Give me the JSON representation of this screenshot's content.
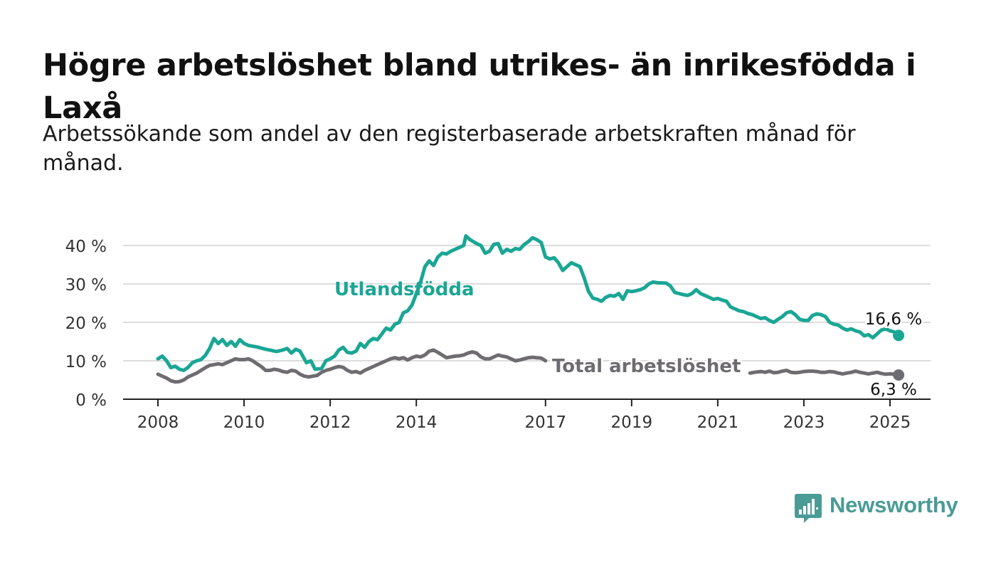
{
  "title": "Högre arbetslöshet bland utrikes- än inrikesfödda i Laxå",
  "subtitle": "Arbetssökande som andel av den registerbaserade arbetskraften månad för månad.",
  "brand": {
    "name": "Newsworthy",
    "color": "#4a9b96"
  },
  "chart_data": {
    "type": "line",
    "title": "Högre arbetslöshet bland utrikes- än inrikesfödda i Laxå",
    "subtitle": "Arbetssökande som andel av den registerbaserade arbetskraften månad för månad.",
    "ylim": [
      0,
      45
    ],
    "xlim": [
      2007.2,
      2025.9
    ],
    "yticks": [
      0,
      10,
      20,
      30,
      40
    ],
    "ytick_labels": [
      "0 %",
      "10 %",
      "20 %",
      "30 %",
      "40 %"
    ],
    "xticks": [
      2008,
      2010,
      2012,
      2014,
      2017,
      2019,
      2021,
      2023,
      2025
    ],
    "xtick_labels": [
      "2008",
      "2010",
      "2012",
      "2014",
      "2017",
      "2019",
      "2021",
      "2023",
      "2025"
    ],
    "grid": true,
    "series": [
      {
        "name": "Utlandsfödda",
        "color": "#1aa695",
        "end_label": "16,6 %",
        "points": [
          [
            2008.0,
            10.5
          ],
          [
            2008.1,
            11.2
          ],
          [
            2008.2,
            10.0
          ],
          [
            2008.3,
            8.2
          ],
          [
            2008.4,
            8.6
          ],
          [
            2008.5,
            7.8
          ],
          [
            2008.6,
            7.5
          ],
          [
            2008.7,
            8.3
          ],
          [
            2008.8,
            9.5
          ],
          [
            2008.9,
            10.0
          ],
          [
            2009.0,
            10.3
          ],
          [
            2009.1,
            11.4
          ],
          [
            2009.2,
            13.2
          ],
          [
            2009.3,
            15.8
          ],
          [
            2009.4,
            14.5
          ],
          [
            2009.5,
            15.5
          ],
          [
            2009.6,
            14.0
          ],
          [
            2009.7,
            15.0
          ],
          [
            2009.8,
            13.8
          ],
          [
            2009.9,
            15.5
          ],
          [
            2010.0,
            14.5
          ],
          [
            2010.1,
            14.0
          ],
          [
            2010.3,
            13.6
          ],
          [
            2010.5,
            13.0
          ],
          [
            2010.6,
            12.8
          ],
          [
            2010.75,
            12.4
          ],
          [
            2010.9,
            12.8
          ],
          [
            2011.0,
            13.2
          ],
          [
            2011.1,
            12.0
          ],
          [
            2011.2,
            13.0
          ],
          [
            2011.3,
            12.5
          ],
          [
            2011.45,
            9.5
          ],
          [
            2011.55,
            10.0
          ],
          [
            2011.65,
            7.8
          ],
          [
            2011.8,
            8.0
          ],
          [
            2011.9,
            10.0
          ],
          [
            2012.0,
            10.5
          ],
          [
            2012.1,
            11.2
          ],
          [
            2012.2,
            12.8
          ],
          [
            2012.3,
            13.5
          ],
          [
            2012.4,
            12.2
          ],
          [
            2012.5,
            12.0
          ],
          [
            2012.6,
            12.5
          ],
          [
            2012.7,
            14.5
          ],
          [
            2012.8,
            13.5
          ],
          [
            2012.9,
            15.0
          ],
          [
            2013.0,
            15.8
          ],
          [
            2013.1,
            15.5
          ],
          [
            2013.2,
            17.0
          ],
          [
            2013.3,
            18.5
          ],
          [
            2013.4,
            18.0
          ],
          [
            2013.5,
            19.5
          ],
          [
            2013.6,
            20.0
          ],
          [
            2013.7,
            22.5
          ],
          [
            2013.8,
            23.0
          ],
          [
            2013.9,
            24.5
          ],
          [
            2014.0,
            27.5
          ],
          [
            2014.1,
            30.5
          ],
          [
            2014.2,
            34.5
          ],
          [
            2014.3,
            36.0
          ],
          [
            2014.4,
            34.8
          ],
          [
            2014.5,
            37.0
          ],
          [
            2014.6,
            38.0
          ],
          [
            2014.7,
            37.8
          ],
          [
            2014.8,
            38.5
          ],
          [
            2014.9,
            39.0
          ],
          [
            2015.0,
            39.5
          ],
          [
            2015.1,
            40.0
          ],
          [
            2015.15,
            42.5
          ],
          [
            2015.25,
            41.5
          ],
          [
            2015.4,
            40.5
          ],
          [
            2015.5,
            40.0
          ],
          [
            2015.6,
            38.0
          ],
          [
            2015.7,
            38.5
          ],
          [
            2015.8,
            40.3
          ],
          [
            2015.9,
            40.5
          ],
          [
            2016.0,
            38.0
          ],
          [
            2016.1,
            39.0
          ],
          [
            2016.2,
            38.5
          ],
          [
            2016.3,
            39.2
          ],
          [
            2016.4,
            39.0
          ],
          [
            2016.5,
            40.2
          ],
          [
            2016.6,
            41.0
          ],
          [
            2016.7,
            42.0
          ],
          [
            2016.8,
            41.5
          ],
          [
            2016.9,
            40.8
          ],
          [
            2017.0,
            37.0
          ],
          [
            2017.1,
            36.5
          ],
          [
            2017.2,
            36.8
          ],
          [
            2017.3,
            35.5
          ],
          [
            2017.4,
            33.5
          ],
          [
            2017.5,
            34.5
          ],
          [
            2017.6,
            35.5
          ],
          [
            2017.7,
            35.0
          ],
          [
            2017.8,
            34.5
          ],
          [
            2017.9,
            31.5
          ],
          [
            2018.0,
            28.0
          ],
          [
            2018.1,
            26.3
          ],
          [
            2018.2,
            26.0
          ],
          [
            2018.3,
            25.5
          ],
          [
            2018.4,
            26.5
          ],
          [
            2018.5,
            27.0
          ],
          [
            2018.6,
            26.8
          ],
          [
            2018.7,
            27.5
          ],
          [
            2018.8,
            26.0
          ],
          [
            2018.9,
            28.2
          ],
          [
            2019.0,
            28.0
          ],
          [
            2019.1,
            28.2
          ],
          [
            2019.2,
            28.5
          ],
          [
            2019.3,
            29.0
          ],
          [
            2019.4,
            30.0
          ],
          [
            2019.5,
            30.5
          ],
          [
            2019.6,
            30.3
          ],
          [
            2019.8,
            30.2
          ],
          [
            2019.9,
            29.5
          ],
          [
            2020.0,
            27.8
          ],
          [
            2020.1,
            27.5
          ],
          [
            2020.2,
            27.2
          ],
          [
            2020.3,
            27.0
          ],
          [
            2020.4,
            27.5
          ],
          [
            2020.5,
            28.5
          ],
          [
            2020.6,
            27.5
          ],
          [
            2020.7,
            27.0
          ],
          [
            2020.8,
            26.5
          ],
          [
            2020.9,
            26.0
          ],
          [
            2021.0,
            26.2
          ],
          [
            2021.1,
            25.8
          ],
          [
            2021.2,
            25.5
          ],
          [
            2021.3,
            24.0
          ],
          [
            2021.4,
            23.5
          ],
          [
            2021.5,
            23.0
          ],
          [
            2021.6,
            22.8
          ],
          [
            2021.7,
            22.3
          ],
          [
            2021.8,
            22.0
          ],
          [
            2021.9,
            21.5
          ],
          [
            2022.0,
            21.0
          ],
          [
            2022.1,
            21.2
          ],
          [
            2022.2,
            20.5
          ],
          [
            2022.3,
            20.0
          ],
          [
            2022.4,
            20.8
          ],
          [
            2022.5,
            21.5
          ],
          [
            2022.6,
            22.5
          ],
          [
            2022.7,
            22.8
          ],
          [
            2022.8,
            22.0
          ],
          [
            2022.9,
            20.8
          ],
          [
            2023.0,
            20.5
          ],
          [
            2023.1,
            20.5
          ],
          [
            2023.2,
            21.8
          ],
          [
            2023.3,
            22.2
          ],
          [
            2023.4,
            22.0
          ],
          [
            2023.5,
            21.5
          ],
          [
            2023.6,
            20.0
          ],
          [
            2023.7,
            19.5
          ],
          [
            2023.8,
            19.3
          ],
          [
            2023.9,
            18.5
          ],
          [
            2024.0,
            18.0
          ],
          [
            2024.1,
            18.3
          ],
          [
            2024.2,
            17.8
          ],
          [
            2024.3,
            17.5
          ],
          [
            2024.4,
            16.5
          ],
          [
            2024.5,
            16.8
          ],
          [
            2024.6,
            16.0
          ],
          [
            2024.7,
            17.0
          ],
          [
            2024.8,
            18.0
          ],
          [
            2024.9,
            18.3
          ],
          [
            2025.0,
            17.8
          ],
          [
            2025.1,
            17.5
          ],
          [
            2025.2,
            16.6
          ]
        ]
      },
      {
        "name": "Total arbetslöshet",
        "color": "#6e6c70",
        "end_label": "6,3 %",
        "points": [
          [
            2008.0,
            6.5
          ],
          [
            2008.1,
            6.0
          ],
          [
            2008.2,
            5.5
          ],
          [
            2008.3,
            4.8
          ],
          [
            2008.4,
            4.5
          ],
          [
            2008.5,
            4.6
          ],
          [
            2008.6,
            5.0
          ],
          [
            2008.7,
            5.8
          ],
          [
            2008.8,
            6.3
          ],
          [
            2008.9,
            6.8
          ],
          [
            2009.0,
            7.5
          ],
          [
            2009.1,
            8.2
          ],
          [
            2009.2,
            8.8
          ],
          [
            2009.3,
            9.0
          ],
          [
            2009.4,
            9.2
          ],
          [
            2009.5,
            9.0
          ],
          [
            2009.6,
            9.5
          ],
          [
            2009.7,
            10.0
          ],
          [
            2009.8,
            10.5
          ],
          [
            2009.9,
            10.3
          ],
          [
            2010.0,
            10.3
          ],
          [
            2010.1,
            10.5
          ],
          [
            2010.2,
            10.0
          ],
          [
            2010.3,
            9.2
          ],
          [
            2010.4,
            8.5
          ],
          [
            2010.5,
            7.5
          ],
          [
            2010.6,
            7.5
          ],
          [
            2010.7,
            7.8
          ],
          [
            2010.8,
            7.6
          ],
          [
            2010.9,
            7.2
          ],
          [
            2011.0,
            7.0
          ],
          [
            2011.1,
            7.5
          ],
          [
            2011.2,
            7.3
          ],
          [
            2011.3,
            6.5
          ],
          [
            2011.4,
            6.0
          ],
          [
            2011.5,
            5.8
          ],
          [
            2011.6,
            6.0
          ],
          [
            2011.7,
            6.2
          ],
          [
            2011.8,
            7.0
          ],
          [
            2011.9,
            7.5
          ],
          [
            2012.0,
            7.8
          ],
          [
            2012.1,
            8.2
          ],
          [
            2012.2,
            8.5
          ],
          [
            2012.3,
            8.3
          ],
          [
            2012.4,
            7.5
          ],
          [
            2012.5,
            7.0
          ],
          [
            2012.6,
            7.2
          ],
          [
            2012.7,
            6.8
          ],
          [
            2012.8,
            7.5
          ],
          [
            2012.9,
            8.0
          ],
          [
            2013.0,
            8.5
          ],
          [
            2013.1,
            9.0
          ],
          [
            2013.2,
            9.5
          ],
          [
            2013.3,
            10.0
          ],
          [
            2013.4,
            10.5
          ],
          [
            2013.5,
            10.8
          ],
          [
            2013.6,
            10.5
          ],
          [
            2013.7,
            10.8
          ],
          [
            2013.8,
            10.2
          ],
          [
            2013.9,
            10.8
          ],
          [
            2014.0,
            11.2
          ],
          [
            2014.1,
            11.0
          ],
          [
            2014.2,
            11.5
          ],
          [
            2014.3,
            12.5
          ],
          [
            2014.4,
            12.8
          ],
          [
            2014.5,
            12.2
          ],
          [
            2014.6,
            11.5
          ],
          [
            2014.7,
            10.8
          ],
          [
            2014.8,
            11.0
          ],
          [
            2014.9,
            11.2
          ],
          [
            2015.0,
            11.3
          ],
          [
            2015.1,
            11.5
          ],
          [
            2015.2,
            12.0
          ],
          [
            2015.3,
            12.3
          ],
          [
            2015.4,
            12.0
          ],
          [
            2015.5,
            11.0
          ],
          [
            2015.6,
            10.5
          ],
          [
            2015.7,
            10.5
          ],
          [
            2015.8,
            11.0
          ],
          [
            2015.9,
            11.5
          ],
          [
            2016.0,
            11.2
          ],
          [
            2016.1,
            11.0
          ],
          [
            2016.2,
            10.5
          ],
          [
            2016.3,
            10.0
          ],
          [
            2016.4,
            10.2
          ],
          [
            2016.5,
            10.5
          ],
          [
            2016.6,
            10.8
          ],
          [
            2016.7,
            10.9
          ],
          [
            2016.8,
            10.8
          ],
          [
            2016.9,
            10.7
          ],
          [
            2017.0,
            10.0
          ]
        ],
        "tail_points": [
          [
            2021.75,
            6.8
          ],
          [
            2021.85,
            7.0
          ],
          [
            2022.0,
            7.2
          ],
          [
            2022.1,
            7.0
          ],
          [
            2022.2,
            7.3
          ],
          [
            2022.3,
            6.9
          ],
          [
            2022.4,
            7.0
          ],
          [
            2022.5,
            7.3
          ],
          [
            2022.6,
            7.5
          ],
          [
            2022.7,
            7.0
          ],
          [
            2022.8,
            6.9
          ],
          [
            2022.9,
            7.0
          ],
          [
            2023.0,
            7.2
          ],
          [
            2023.1,
            7.3
          ],
          [
            2023.2,
            7.3
          ],
          [
            2023.3,
            7.2
          ],
          [
            2023.4,
            7.0
          ],
          [
            2023.5,
            7.0
          ],
          [
            2023.6,
            7.2
          ],
          [
            2023.7,
            7.1
          ],
          [
            2023.8,
            6.8
          ],
          [
            2023.9,
            6.6
          ],
          [
            2024.0,
            6.8
          ],
          [
            2024.1,
            7.0
          ],
          [
            2024.2,
            7.3
          ],
          [
            2024.3,
            7.0
          ],
          [
            2024.4,
            6.8
          ],
          [
            2024.5,
            6.6
          ],
          [
            2024.6,
            6.8
          ],
          [
            2024.7,
            7.0
          ],
          [
            2024.8,
            6.7
          ],
          [
            2024.9,
            6.5
          ],
          [
            2025.0,
            6.6
          ],
          [
            2025.1,
            6.5
          ],
          [
            2025.2,
            6.3
          ]
        ]
      }
    ],
    "annotations": [
      {
        "text": "Utlandsfödda",
        "series": 0
      },
      {
        "text": "Total arbetslöshet",
        "series": 1
      }
    ]
  }
}
